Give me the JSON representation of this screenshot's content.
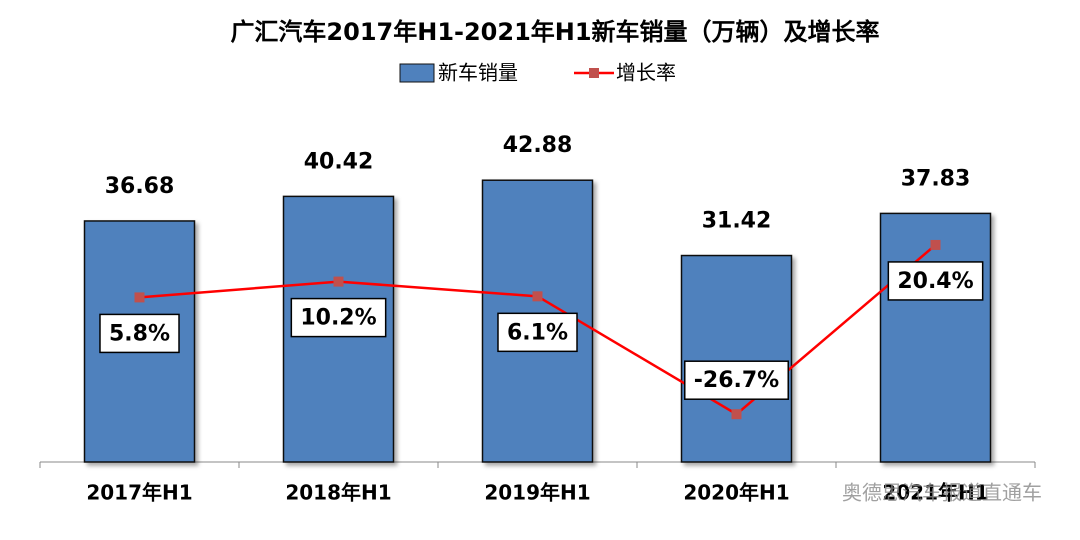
{
  "chart_data": {
    "type": "bar_line",
    "title": "广汇汽车2017年H1-2021年H1新车销量（万辆）及增长率",
    "categories": [
      "2017年H1",
      "2018年H1",
      "2019年H1",
      "2020年H1",
      "2021年H1"
    ],
    "series": [
      {
        "name": "新车销量",
        "type": "bar",
        "color": "#4f81bd",
        "values": [
          36.68,
          40.42,
          42.88,
          31.42,
          37.83
        ]
      },
      {
        "name": "增长率",
        "type": "line",
        "color": "#ff0000",
        "marker_color": "#c0504d",
        "axis": "y2",
        "values": [
          5.8,
          10.2,
          6.1,
          -26.7,
          20.4
        ],
        "value_labels": [
          "5.8%",
          "10.2%",
          "6.1%",
          "-26.7%",
          "20.4%"
        ]
      }
    ],
    "ylim": [
      0,
      70
    ],
    "y2lim": [
      -40,
      88
    ],
    "grid": false,
    "legend": "top",
    "watermark": "奥德思汽车报道直通车"
  }
}
